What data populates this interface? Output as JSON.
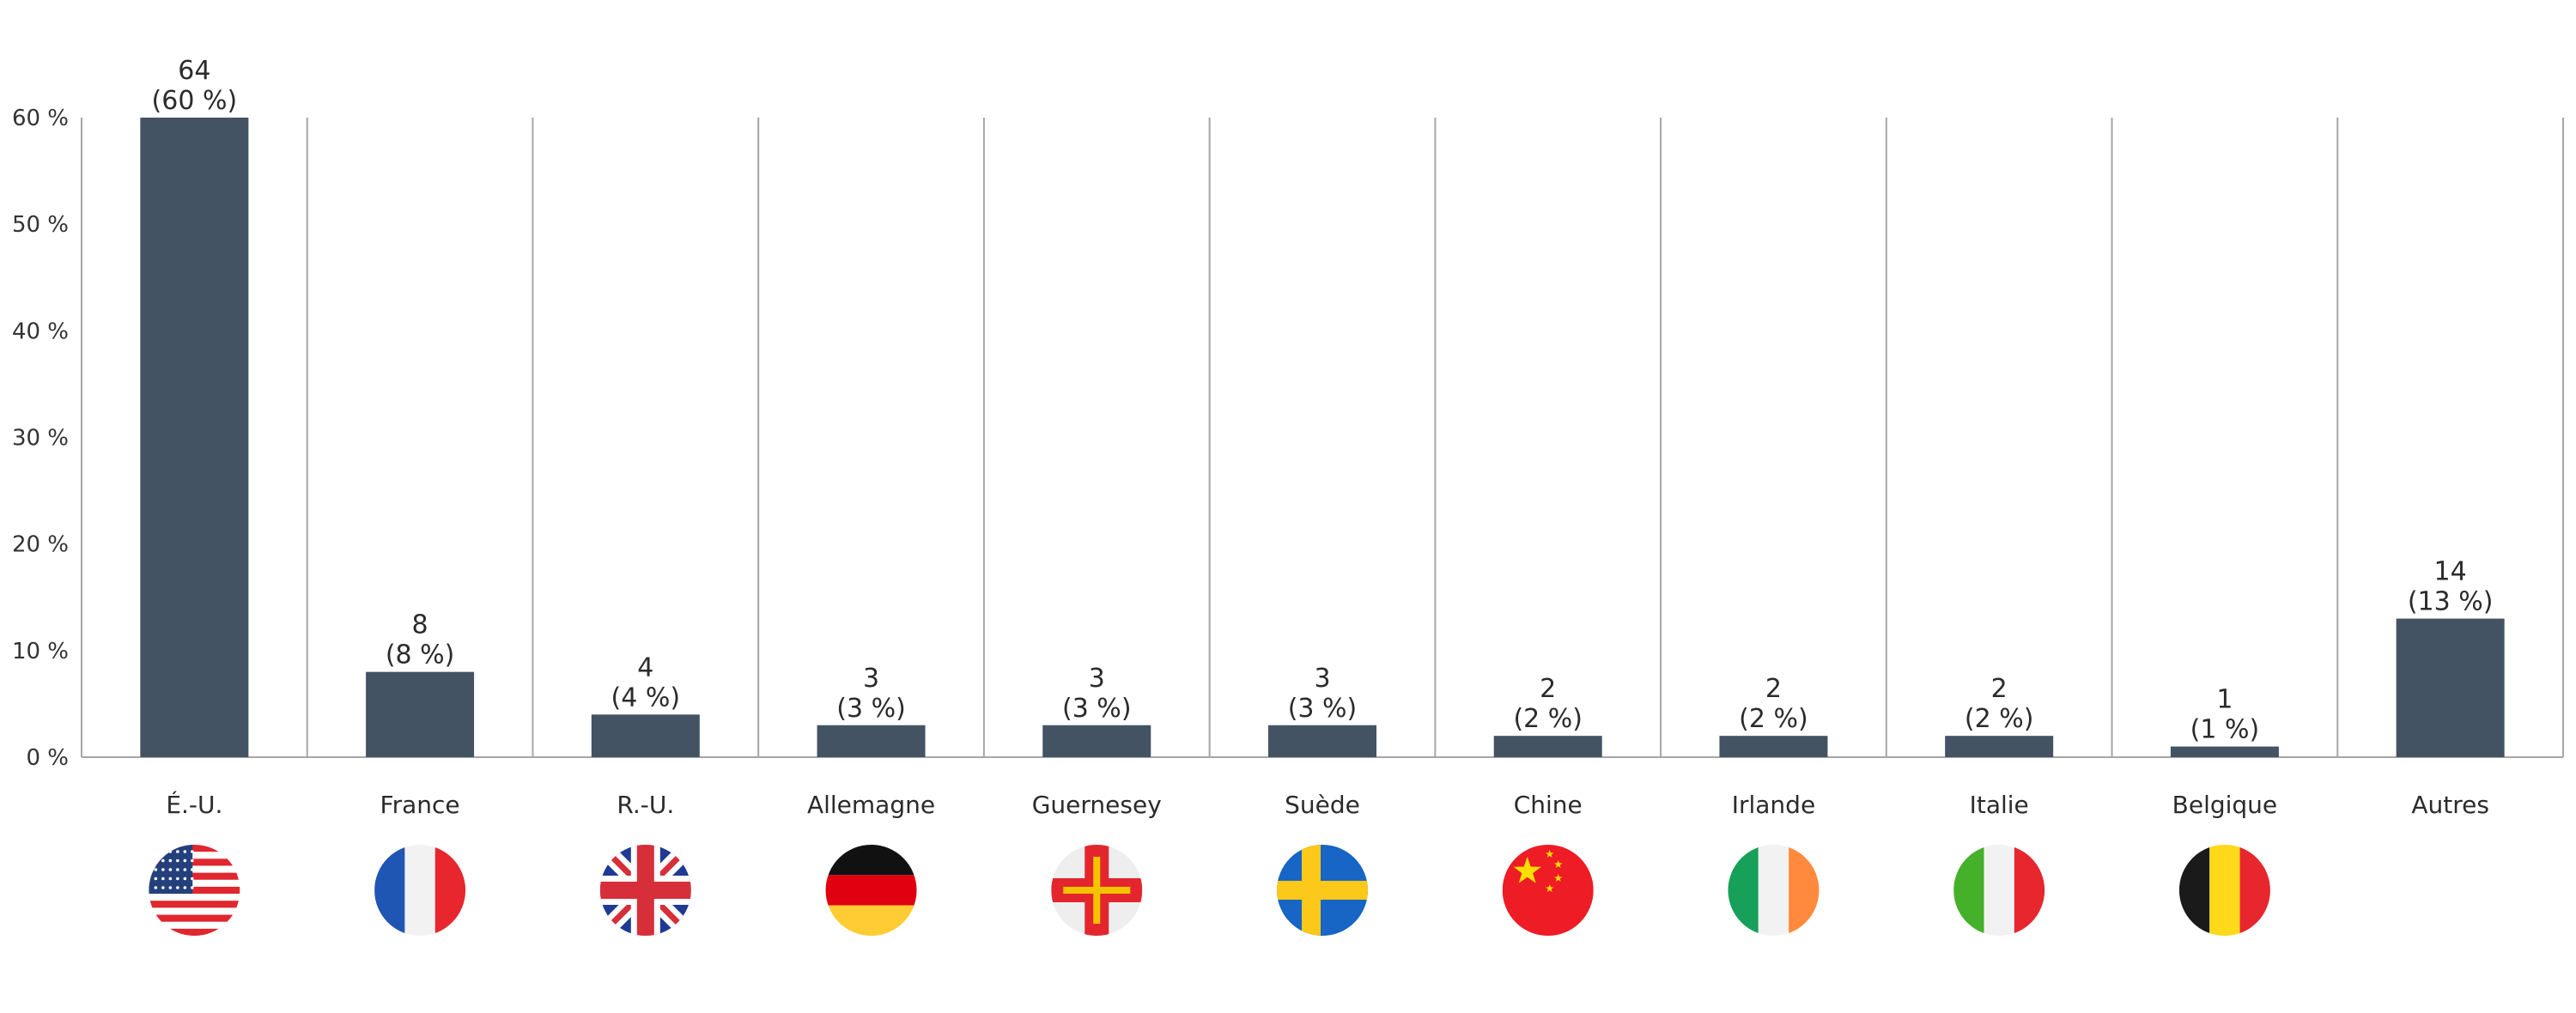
{
  "chart_data": {
    "type": "bar",
    "title": "",
    "xlabel": "",
    "ylabel": "",
    "ylim": [
      0,
      60
    ],
    "yticks": [
      "0 %",
      "10 %",
      "20 %",
      "30 %",
      "40 %",
      "50 %",
      "60 %"
    ],
    "ytick_values": [
      0,
      10,
      20,
      30,
      40,
      50,
      60
    ],
    "grid": "vertical separators between categories",
    "categories": [
      "É.-U.",
      "France",
      "R.-U.",
      "Allemagne",
      "Guernesey",
      "Suède",
      "Chine",
      "Irlande",
      "Italie",
      "Belgique",
      "Autres"
    ],
    "counts": [
      "64",
      "8",
      "4",
      "3",
      "3",
      "3",
      "2",
      "2",
      "2",
      "1",
      "14"
    ],
    "percent_labels": [
      "(60 %)",
      "(8 %)",
      "(4 %)",
      "(3 %)",
      "(3 %)",
      "(3 %)",
      "(2 %)",
      "(2 %)",
      "(2 %)",
      "(1 %)",
      "(13 %)"
    ],
    "values": [
      60,
      8,
      4,
      3,
      3,
      3,
      2,
      2,
      2,
      1,
      13
    ],
    "flags": [
      "us-flag-icon",
      "france-flag-icon",
      "uk-flag-icon",
      "germany-flag-icon",
      "guernsey-flag-icon",
      "sweden-flag-icon",
      "china-flag-icon",
      "ireland-flag-icon",
      "italy-flag-icon",
      "belgium-flag-icon",
      ""
    ],
    "bar_color": "#435364",
    "axis_color": "#a6a6a6"
  }
}
